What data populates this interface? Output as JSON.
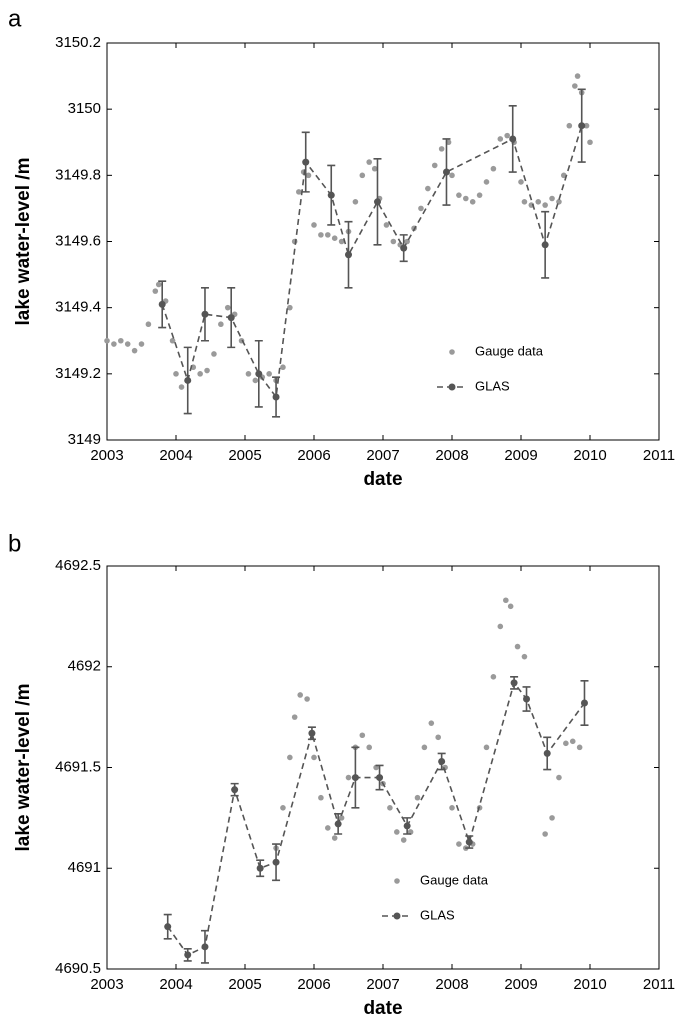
{
  "chart_data": [
    {
      "type": "combo",
      "panel_label": "a",
      "xlabel": "date",
      "ylabel": "lake water-level /m",
      "xlim": [
        2003,
        2011
      ],
      "xticks": [
        2003,
        2004,
        2005,
        2006,
        2007,
        2008,
        2009,
        2010,
        2011
      ],
      "ylim": [
        3149,
        3150.2
      ],
      "yticks": [
        3149,
        3149.2,
        3149.4,
        3149.6,
        3149.8,
        3150,
        3150.2
      ],
      "legend": "lower right",
      "series": [
        {
          "name": "Gauge data",
          "type": "scatter",
          "color": "#9a9a9a",
          "x": [
            2003.0,
            2003.1,
            2003.2,
            2003.3,
            2003.4,
            2003.5,
            2003.6,
            2003.7,
            2003.75,
            2003.85,
            2003.95,
            2004.0,
            2004.08,
            2004.17,
            2004.25,
            2004.35,
            2004.45,
            2004.55,
            2004.65,
            2004.75,
            2004.85,
            2004.95,
            2005.05,
            2005.15,
            2005.25,
            2005.35,
            2005.45,
            2005.55,
            2005.65,
            2005.72,
            2005.78,
            2005.85,
            2005.92,
            2006.0,
            2006.1,
            2006.2,
            2006.3,
            2006.4,
            2006.5,
            2006.6,
            2006.7,
            2006.8,
            2006.88,
            2006.95,
            2007.05,
            2007.15,
            2007.25,
            2007.35,
            2007.45,
            2007.55,
            2007.65,
            2007.75,
            2007.85,
            2007.95,
            2008.0,
            2008.1,
            2008.2,
            2008.3,
            2008.4,
            2008.5,
            2008.6,
            2008.7,
            2008.8,
            2008.9,
            2009.0,
            2009.05,
            2009.15,
            2009.25,
            2009.35,
            2009.45,
            2009.55,
            2009.62,
            2009.7,
            2009.78,
            2009.82,
            2009.88,
            2009.95,
            2010.0
          ],
          "values": [
            3149.3,
            3149.29,
            3149.3,
            3149.29,
            3149.27,
            3149.29,
            3149.35,
            3149.45,
            3149.47,
            3149.42,
            3149.3,
            3149.2,
            3149.16,
            3149.18,
            3149.22,
            3149.2,
            3149.21,
            3149.26,
            3149.35,
            3149.4,
            3149.38,
            3149.3,
            3149.2,
            3149.18,
            3149.19,
            3149.2,
            3149.18,
            3149.22,
            3149.4,
            3149.6,
            3149.75,
            3149.81,
            3149.8,
            3149.65,
            3149.62,
            3149.62,
            3149.61,
            3149.6,
            3149.63,
            3149.72,
            3149.8,
            3149.84,
            3149.82,
            3149.73,
            3149.65,
            3149.6,
            3149.59,
            3149.6,
            3149.64,
            3149.7,
            3149.76,
            3149.83,
            3149.88,
            3149.9,
            3149.8,
            3149.74,
            3149.73,
            3149.72,
            3149.74,
            3149.78,
            3149.82,
            3149.91,
            3149.92,
            3149.9,
            3149.78,
            3149.72,
            3149.71,
            3149.72,
            3149.71,
            3149.73,
            3149.72,
            3149.8,
            3149.95,
            3150.07,
            3150.1,
            3150.05,
            3149.95,
            3149.9
          ]
        },
        {
          "name": "GLAS",
          "type": "line",
          "color": "#555555",
          "dashed": true,
          "x": [
            2003.8,
            2004.17,
            2004.42,
            2004.8,
            2005.2,
            2005.45,
            2005.88,
            2006.25,
            2006.5,
            2006.92,
            2007.3,
            2007.92,
            2008.88,
            2009.35,
            2009.88
          ],
          "values": [
            3149.41,
            3149.18,
            3149.38,
            3149.37,
            3149.2,
            3149.13,
            3149.84,
            3149.74,
            3149.56,
            3149.72,
            3149.58,
            3149.81,
            3149.91,
            3149.59,
            3149.95
          ],
          "errors": [
            0.07,
            0.1,
            0.08,
            0.09,
            0.1,
            0.06,
            0.09,
            0.09,
            0.1,
            0.13,
            0.04,
            0.1,
            0.1,
            0.1,
            0.11
          ]
        }
      ]
    },
    {
      "type": "combo",
      "panel_label": "b",
      "xlabel": "date",
      "ylabel": "lake water-level /m",
      "xlim": [
        2003,
        2011
      ],
      "xticks": [
        2003,
        2004,
        2005,
        2006,
        2007,
        2008,
        2009,
        2010,
        2011
      ],
      "ylim": [
        4690.5,
        4692.5
      ],
      "yticks": [
        4690.5,
        4691,
        4691.5,
        4692,
        4692.5
      ],
      "legend": "lower center",
      "series": [
        {
          "name": "Gauge data",
          "type": "scatter",
          "color": "#9a9a9a",
          "x": [
            2005.45,
            2005.55,
            2005.65,
            2005.72,
            2005.8,
            2005.9,
            2006.0,
            2006.1,
            2006.2,
            2006.3,
            2006.4,
            2006.5,
            2006.6,
            2006.7,
            2006.8,
            2006.9,
            2007.0,
            2007.1,
            2007.2,
            2007.3,
            2007.4,
            2007.5,
            2007.6,
            2007.7,
            2007.8,
            2007.9,
            2008.0,
            2008.1,
            2008.2,
            2008.3,
            2008.4,
            2008.5,
            2008.6,
            2008.7,
            2008.78,
            2008.85,
            2008.95,
            2009.05,
            2009.35,
            2009.45,
            2009.55,
            2009.65,
            2009.75,
            2009.85
          ],
          "values": [
            4691.1,
            4691.3,
            4691.55,
            4691.75,
            4691.86,
            4691.84,
            4691.55,
            4691.35,
            4691.2,
            4691.15,
            4691.25,
            4691.45,
            4691.6,
            4691.66,
            4691.6,
            4691.5,
            4691.42,
            4691.3,
            4691.18,
            4691.14,
            4691.18,
            4691.35,
            4691.6,
            4691.72,
            4691.65,
            4691.5,
            4691.3,
            4691.12,
            4691.1,
            4691.12,
            4691.3,
            4691.6,
            4691.95,
            4692.2,
            4692.33,
            4692.3,
            4692.1,
            4692.05,
            4691.17,
            4691.25,
            4691.45,
            4691.62,
            4691.63,
            4691.6
          ]
        },
        {
          "name": "GLAS",
          "type": "line",
          "color": "#555555",
          "dashed": true,
          "x": [
            2003.88,
            2004.17,
            2004.42,
            2004.85,
            2005.22,
            2005.45,
            2005.97,
            2006.35,
            2006.6,
            2006.95,
            2007.35,
            2007.85,
            2008.25,
            2008.9,
            2009.08,
            2009.38,
            2009.92
          ],
          "values": [
            4690.71,
            4690.57,
            4690.61,
            4691.39,
            4691.0,
            4691.03,
            4691.67,
            4691.22,
            4691.45,
            4691.45,
            4691.21,
            4691.53,
            4691.13,
            4691.92,
            4691.84,
            4691.57,
            4691.82
          ],
          "errors": [
            0.06,
            0.03,
            0.08,
            0.03,
            0.04,
            0.09,
            0.03,
            0.05,
            0.15,
            0.06,
            0.04,
            0.04,
            0.03,
            0.03,
            0.06,
            0.08,
            0.11
          ]
        }
      ]
    }
  ]
}
